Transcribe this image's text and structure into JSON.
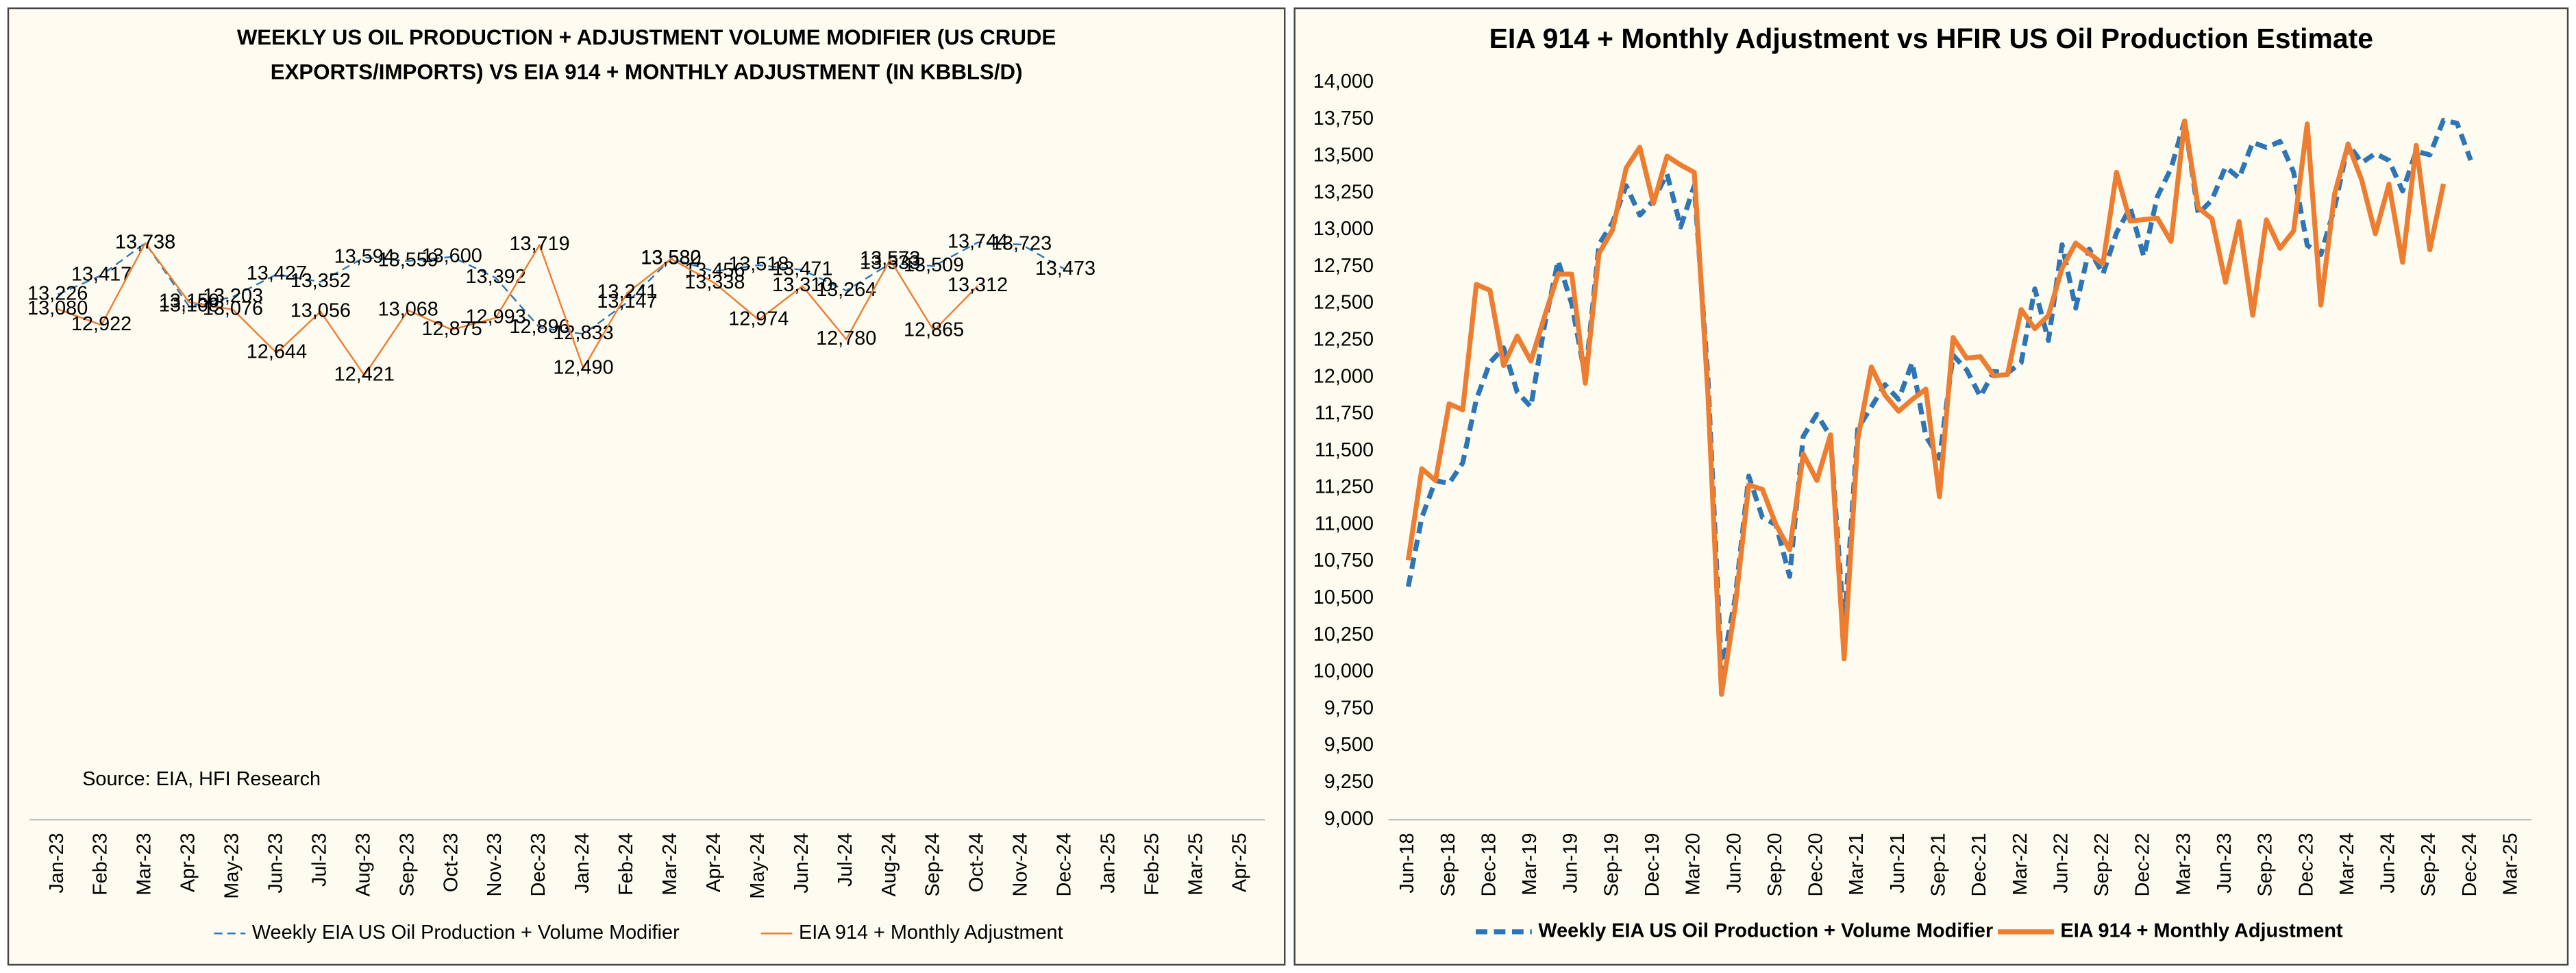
{
  "chart_data": [
    {
      "type": "line",
      "title": "WEEKLY US OIL PRODUCTION + ADJUSTMENT VOLUME MODIFIER (US CRUDE EXPORTS/IMPORTS) VS EIA 914 + MONTHLY ADJUSTMENT (IN KBBLS/D)",
      "source": "Source: EIA, HFI Research",
      "categories": [
        "Jan-23",
        "Feb-23",
        "Mar-23",
        "Apr-23",
        "May-23",
        "Jun-23",
        "Jul-23",
        "Aug-23",
        "Sep-23",
        "Oct-23",
        "Nov-23",
        "Dec-23",
        "Jan-24",
        "Feb-24",
        "Mar-24",
        "Apr-24",
        "May-24",
        "Jun-24",
        "Jul-24",
        "Aug-24",
        "Sep-24",
        "Oct-24",
        "Nov-24",
        "Dec-24",
        "Jan-25",
        "Feb-25",
        "Mar-25",
        "Apr-25"
      ],
      "ylim": [
        8000,
        15500
      ],
      "series": [
        {
          "name": "Weekly EIA US Oil Production + Volume Modifier",
          "color": "#2e75b6",
          "dashed": true,
          "values": [
            13226,
            13417,
            13738,
            13108,
            13203,
            13427,
            13352,
            13594,
            13559,
            13600,
            13392,
            12896,
            12833,
            13147,
            13582,
            13456,
            13518,
            13471,
            13264,
            13533,
            13509,
            13744,
            13723,
            13473,
            null,
            null,
            null,
            null
          ],
          "value_labels": [
            "13,226",
            "13,417",
            "13,738",
            "13,108",
            "13,203",
            "13,427",
            "13,352",
            "13,594",
            "13,559",
            "13,600",
            "13,392",
            "12,896",
            "12,833",
            "13,147",
            "13,582",
            "13,456",
            "13,518",
            "13,471",
            "13,264",
            "13,533",
            "13,509",
            "13,744",
            "13,723",
            "13,473",
            null,
            null,
            null,
            null
          ]
        },
        {
          "name": "EIA 914 + Monthly Adjustment",
          "color": "#ed7d31",
          "dashed": false,
          "values": [
            13080,
            12922,
            13738,
            13150,
            13076,
            12644,
            13056,
            12421,
            13068,
            12875,
            12993,
            13719,
            12490,
            13241,
            13580,
            13338,
            12974,
            13310,
            12780,
            13573,
            12865,
            13312,
            null,
            null,
            null,
            null,
            null,
            null
          ],
          "value_labels": [
            "13,080",
            "12,922",
            "13,738",
            "13,150",
            "13,076",
            "12,644",
            "13,056",
            "12,421",
            "13,068",
            "12,875",
            "12,993",
            "13,719",
            "12,490",
            "13,241",
            "13,580",
            "13,338",
            "12,974",
            "13,310",
            "12,780",
            "13,573",
            "12,865",
            "13,312",
            null,
            null,
            null,
            null,
            null,
            null
          ]
        }
      ]
    },
    {
      "type": "line",
      "title": "EIA 914 + Monthly Adjustment vs HFIR US Oil Production Estimate",
      "categories": [
        "Jun-18",
        null,
        null,
        "Sep-18",
        null,
        null,
        "Dec-18",
        null,
        null,
        "Mar-19",
        null,
        null,
        "Jun-19",
        null,
        null,
        "Sep-19",
        null,
        null,
        "Dec-19",
        null,
        null,
        "Mar-20",
        null,
        null,
        "Jun-20",
        null,
        null,
        "Sep-20",
        null,
        null,
        "Dec-20",
        null,
        null,
        "Mar-21",
        null,
        null,
        "Jun-21",
        null,
        null,
        "Sep-21",
        null,
        null,
        "Dec-21",
        null,
        null,
        "Mar-22",
        null,
        null,
        "Jun-22",
        null,
        null,
        "Sep-22",
        null,
        null,
        "Dec-22",
        null,
        null,
        "Mar-23",
        null,
        null,
        "Jun-23",
        null,
        null,
        "Sep-23",
        null,
        null,
        "Dec-23",
        null,
        null,
        "Mar-24",
        null,
        null,
        "Jun-24",
        null,
        null,
        "Sep-24",
        null,
        null,
        "Dec-24",
        null,
        null,
        "Mar-25"
      ],
      "ylim": [
        9000,
        14000
      ],
      "yticks": [
        {
          "value": 9000,
          "label": "9,000"
        },
        {
          "value": 9250,
          "label": "9,250"
        },
        {
          "value": 9500,
          "label": "9,500"
        },
        {
          "value": 9750,
          "label": "9,750"
        },
        {
          "value": 10000,
          "label": "10,000"
        },
        {
          "value": 10250,
          "label": "10,250"
        },
        {
          "value": 10500,
          "label": "10,500"
        },
        {
          "value": 10750,
          "label": "10,750"
        },
        {
          "value": 11000,
          "label": "11,000"
        },
        {
          "value": 11250,
          "label": "11,250"
        },
        {
          "value": 11500,
          "label": "11,500"
        },
        {
          "value": 11750,
          "label": "11,750"
        },
        {
          "value": 12000,
          "label": "12,000"
        },
        {
          "value": 12250,
          "label": "12,250"
        },
        {
          "value": 12500,
          "label": "12,500"
        },
        {
          "value": 12750,
          "label": "12,750"
        },
        {
          "value": 13000,
          "label": "13,000"
        },
        {
          "value": 13250,
          "label": "13,250"
        },
        {
          "value": 13500,
          "label": "13,500"
        },
        {
          "value": 13750,
          "label": "13,750"
        },
        {
          "value": 14000,
          "label": "14,000"
        }
      ],
      "series": [
        {
          "name": "Weekly EIA US Oil Production + Volume Modifier",
          "color": "#2e75b6",
          "dashed": true,
          "values": [
            10580,
            11050,
            11300,
            11280,
            11420,
            11850,
            12100,
            12200,
            11900,
            11800,
            12350,
            12790,
            12500,
            12000,
            12900,
            13050,
            13300,
            13100,
            13200,
            13380,
            13020,
            13300,
            12000,
            10000,
            10500,
            11330,
            11050,
            11000,
            10650,
            11600,
            11750,
            11600,
            10300,
            11650,
            11800,
            11950,
            11850,
            12100,
            11600,
            11450,
            12150,
            12050,
            11870,
            12040,
            12030,
            12100,
            12600,
            12250,
            12900,
            12470,
            12870,
            12700,
            12980,
            13150,
            12820,
            13226,
            13417,
            13738,
            13108,
            13203,
            13427,
            13352,
            13594,
            13559,
            13600,
            13392,
            12896,
            12833,
            13147,
            13582,
            13456,
            13518,
            13471,
            13264,
            13533,
            13509,
            13744,
            13723,
            13473,
            null,
            null,
            null
          ]
        },
        {
          "name": "EIA 914 + Monthly Adjustment",
          "color": "#ed7d31",
          "dashed": false,
          "values": [
            10760,
            11380,
            11300,
            11820,
            11780,
            12630,
            12590,
            12080,
            12280,
            12110,
            12410,
            12700,
            12700,
            11960,
            12840,
            13000,
            13420,
            13560,
            13180,
            13500,
            13440,
            13390,
            11890,
            9850,
            10440,
            11270,
            11240,
            11000,
            10830,
            11480,
            11300,
            11610,
            10090,
            11580,
            12070,
            11880,
            11770,
            11850,
            11920,
            11190,
            12270,
            12130,
            12140,
            12010,
            12020,
            12460,
            12330,
            12420,
            12740,
            12910,
            12840,
            12770,
            13390,
            13060,
            13070,
            13080,
            12922,
            13738,
            13150,
            13076,
            12644,
            13056,
            12421,
            13068,
            12875,
            12993,
            13719,
            12490,
            13241,
            13580,
            13338,
            12974,
            13310,
            12780,
            13573,
            12865,
            13312,
            null,
            null,
            null,
            null,
            null
          ]
        }
      ]
    }
  ]
}
